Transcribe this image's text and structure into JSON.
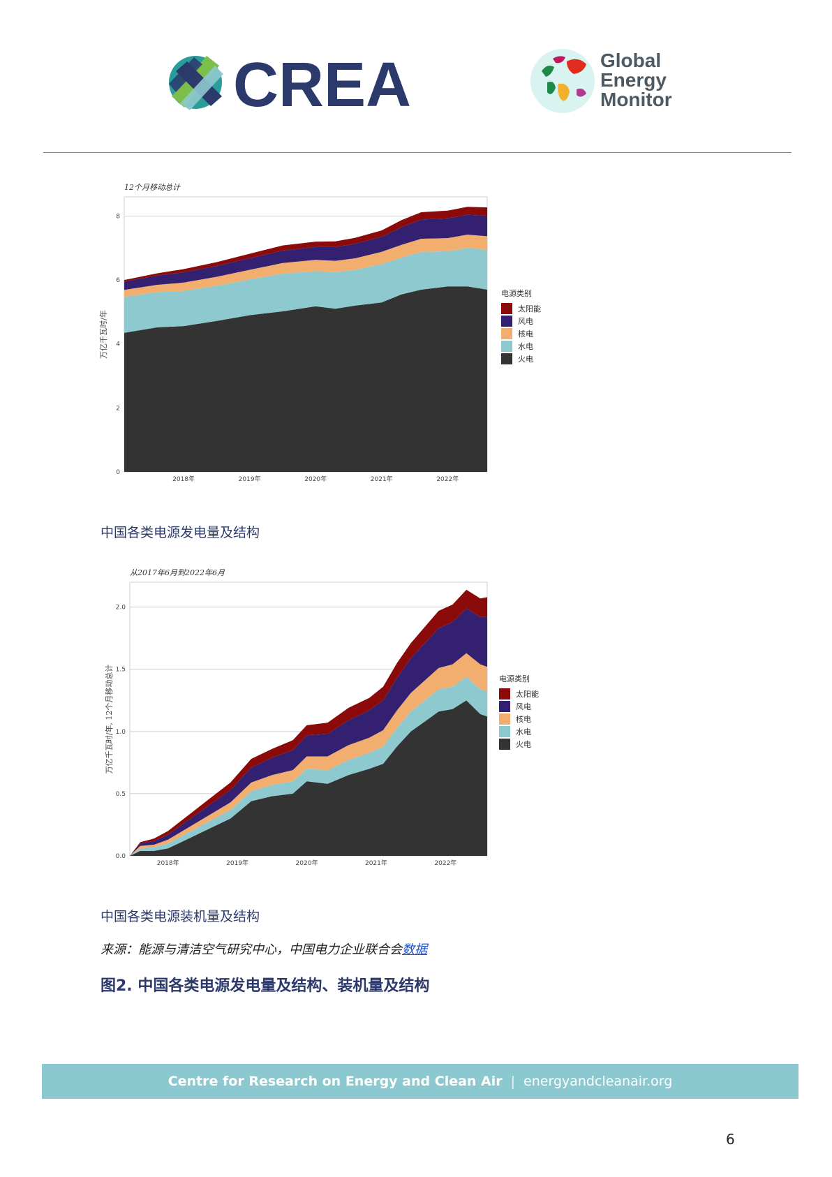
{
  "header": {
    "crea_logo_text": "CREA",
    "gem_logo_lines": [
      "Global",
      "Energy",
      "Monitor"
    ]
  },
  "colors": {
    "solar": "#8b0a0a",
    "wind": "#332070",
    "nuclear": "#f2ae6e",
    "hydro": "#8ec9cf",
    "thermal": "#333333",
    "title_blue": "#2b3a6b",
    "footer_band": "#8cc8cf"
  },
  "chart_data": [
    {
      "type": "area",
      "subtitle": "12个月移动总计",
      "ylabel": "万亿千瓦时/年",
      "ylim": [
        0,
        8.6
      ],
      "yticks": [
        0,
        2,
        4,
        6,
        8
      ],
      "xlim": [
        2017.1,
        2022.6
      ],
      "xticks": [
        {
          "value": 2018,
          "label": "2018年"
        },
        {
          "value": 2019,
          "label": "2019年"
        },
        {
          "value": 2020,
          "label": "2020年"
        },
        {
          "value": 2021,
          "label": "2021年"
        },
        {
          "value": 2022,
          "label": "2022年"
        }
      ],
      "legend_title": "电源类别",
      "x": [
        2017.1,
        2017.6,
        2018.0,
        2018.5,
        2019.0,
        2019.5,
        2020.0,
        2020.3,
        2020.6,
        2021.0,
        2021.3,
        2021.6,
        2022.0,
        2022.3,
        2022.6
      ],
      "series": [
        {
          "name": "火电",
          "key": "thermal",
          "values": [
            4.35,
            4.52,
            4.56,
            4.72,
            4.9,
            5.02,
            5.18,
            5.1,
            5.2,
            5.3,
            5.55,
            5.7,
            5.8,
            5.8,
            5.7
          ]
        },
        {
          "name": "水电",
          "key": "hydro",
          "values": [
            1.12,
            1.1,
            1.1,
            1.1,
            1.12,
            1.18,
            1.1,
            1.15,
            1.12,
            1.2,
            1.15,
            1.18,
            1.1,
            1.2,
            1.25
          ]
        },
        {
          "name": "核电",
          "key": "nuclear",
          "values": [
            0.22,
            0.23,
            0.26,
            0.28,
            0.3,
            0.33,
            0.35,
            0.35,
            0.36,
            0.38,
            0.4,
            0.41,
            0.41,
            0.42,
            0.42
          ]
        },
        {
          "name": "风电",
          "key": "wind",
          "values": [
            0.26,
            0.29,
            0.32,
            0.34,
            0.36,
            0.39,
            0.4,
            0.43,
            0.45,
            0.47,
            0.55,
            0.6,
            0.62,
            0.62,
            0.64
          ]
        },
        {
          "name": "太阳能",
          "key": "solar",
          "values": [
            0.05,
            0.07,
            0.1,
            0.12,
            0.14,
            0.16,
            0.17,
            0.18,
            0.19,
            0.2,
            0.22,
            0.23,
            0.24,
            0.25,
            0.26
          ]
        }
      ]
    },
    {
      "type": "area",
      "subtitle": "从2017年6月到2022年6月",
      "ylabel": "万亿千瓦时/年, 12个月移动总计",
      "ylim": [
        0,
        2.2
      ],
      "yticks": [
        0.0,
        0.5,
        1.0,
        1.5,
        2.0
      ],
      "ytick_labels": [
        "0.0",
        "0.5",
        "1.0",
        "1.5",
        "2.0"
      ],
      "xlim": [
        2017.45,
        2022.6
      ],
      "xticks": [
        {
          "value": 2018,
          "label": "2018年"
        },
        {
          "value": 2019,
          "label": "2019年"
        },
        {
          "value": 2020,
          "label": "2020年"
        },
        {
          "value": 2021,
          "label": "2021年"
        },
        {
          "value": 2022,
          "label": "2022年"
        }
      ],
      "legend_title": "电源类别",
      "x": [
        2017.45,
        2017.6,
        2017.8,
        2018.0,
        2018.3,
        2018.6,
        2018.9,
        2019.2,
        2019.5,
        2019.8,
        2020.0,
        2020.3,
        2020.6,
        2020.9,
        2021.1,
        2021.3,
        2021.5,
        2021.7,
        2021.9,
        2022.1,
        2022.3,
        2022.5,
        2022.6
      ],
      "series": [
        {
          "name": "火电",
          "key": "thermal",
          "values": [
            0.0,
            0.04,
            0.04,
            0.06,
            0.14,
            0.22,
            0.3,
            0.44,
            0.48,
            0.5,
            0.6,
            0.58,
            0.65,
            0.7,
            0.74,
            0.88,
            1.0,
            1.08,
            1.16,
            1.18,
            1.25,
            1.14,
            1.12
          ]
        },
        {
          "name": "水电",
          "key": "hydro",
          "values": [
            0.0,
            0.02,
            0.03,
            0.04,
            0.05,
            0.06,
            0.07,
            0.08,
            0.09,
            0.1,
            0.1,
            0.11,
            0.12,
            0.13,
            0.14,
            0.15,
            0.16,
            0.17,
            0.18,
            0.18,
            0.19,
            0.2,
            0.2
          ]
        },
        {
          "name": "核电",
          "key": "nuclear",
          "values": [
            0.0,
            0.02,
            0.02,
            0.03,
            0.04,
            0.05,
            0.06,
            0.07,
            0.08,
            0.09,
            0.1,
            0.11,
            0.12,
            0.12,
            0.13,
            0.14,
            0.15,
            0.16,
            0.17,
            0.18,
            0.19,
            0.2,
            0.2
          ]
        },
        {
          "name": "风电",
          "key": "wind",
          "values": [
            0.0,
            0.02,
            0.03,
            0.04,
            0.06,
            0.08,
            0.1,
            0.12,
            0.14,
            0.16,
            0.17,
            0.18,
            0.2,
            0.22,
            0.24,
            0.26,
            0.28,
            0.3,
            0.32,
            0.34,
            0.36,
            0.38,
            0.4
          ]
        },
        {
          "name": "太阳能",
          "key": "solar",
          "values": [
            0.0,
            0.01,
            0.02,
            0.03,
            0.04,
            0.05,
            0.06,
            0.07,
            0.07,
            0.08,
            0.08,
            0.09,
            0.1,
            0.1,
            0.11,
            0.12,
            0.12,
            0.13,
            0.14,
            0.14,
            0.15,
            0.15,
            0.16
          ]
        }
      ]
    }
  ],
  "captions": {
    "chart1": "中国各类电源发电量及结构",
    "chart2": "中国各类电源装机量及结构"
  },
  "source": {
    "prefix": "来源：能源与清洁空气研究中心，中国电力企业联合会",
    "link_text": "数据"
  },
  "figure_title": "图2. 中国各类电源发电量及结构、装机量及结构",
  "footer": {
    "org": "Centre for Research on Energy and Clean Air",
    "separator": "|",
    "website": "energyandcleanair.org"
  },
  "page_number": "6"
}
